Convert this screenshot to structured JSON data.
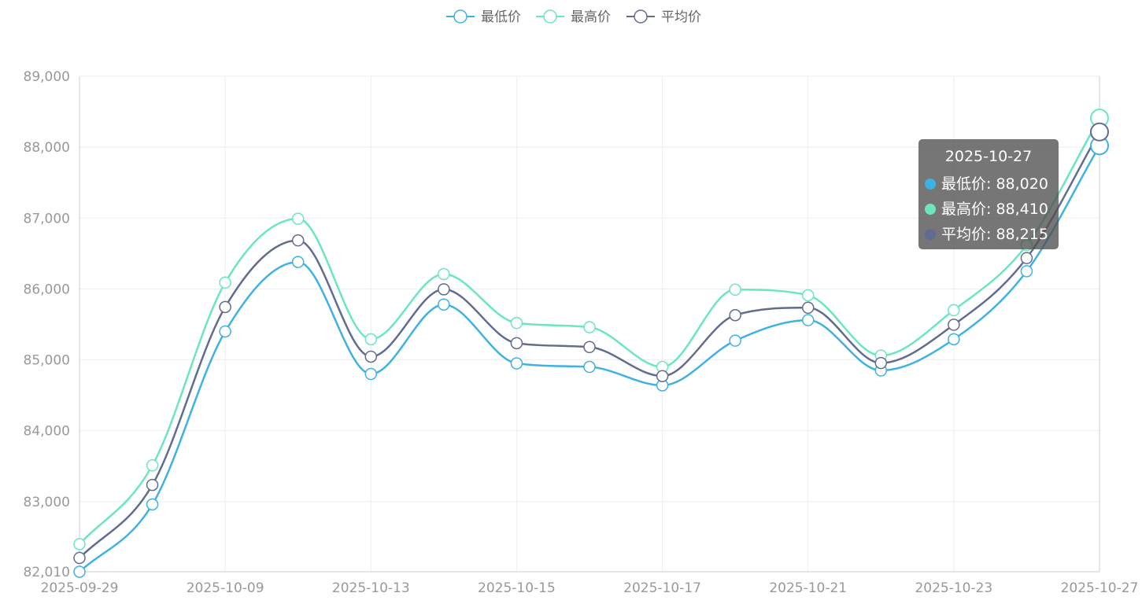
{
  "chart_data": {
    "type": "line",
    "smooth": true,
    "x": [
      "2025-09-29",
      "2025-09-30",
      "2025-10-09",
      "2025-10-10",
      "2025-10-13",
      "2025-10-14",
      "2025-10-15",
      "2025-10-16",
      "2025-10-17",
      "2025-10-20",
      "2025-10-21",
      "2025-10-22",
      "2025-10-23",
      "2025-10-24",
      "2025-10-27"
    ],
    "x_tick_labels": [
      "2025-09-29",
      "2025-10-09",
      "2025-10-13",
      "2025-10-15",
      "2025-10-17",
      "2025-10-21",
      "2025-10-23",
      "2025-10-27"
    ],
    "y_tick_labels": [
      "82,010",
      "83,000",
      "84,000",
      "85,000",
      "86,000",
      "87,000",
      "88,000",
      "89,000"
    ],
    "ylim": [
      82010,
      89000
    ],
    "grid": true,
    "legend_position": "top-center",
    "series": [
      {
        "name": "最低价",
        "color": "#3fb1e3",
        "values": [
          82010,
          82960,
          85400,
          86380,
          84800,
          85780,
          84950,
          84900,
          84640,
          85270,
          85560,
          84850,
          85290,
          86250,
          88020
        ]
      },
      {
        "name": "最高价",
        "color": "#6be6c1",
        "values": [
          82400,
          83510,
          86090,
          86990,
          85290,
          86210,
          85520,
          85460,
          84900,
          85990,
          85910,
          85060,
          85700,
          86620,
          88410
        ]
      },
      {
        "name": "平均价",
        "color": "#626c91",
        "values": [
          82205,
          83235,
          85745,
          86685,
          85045,
          85995,
          85235,
          85180,
          84770,
          85630,
          85735,
          84955,
          85495,
          86435,
          88215
        ]
      }
    ]
  },
  "tooltip": {
    "title": "2025-10-27",
    "rows": [
      {
        "label": "最低价: 88,020",
        "color": "#3fb1e3"
      },
      {
        "label": "最高价: 88,410",
        "color": "#6be6c1"
      },
      {
        "label": "平均价: 88,215",
        "color": "#626c91"
      }
    ]
  }
}
